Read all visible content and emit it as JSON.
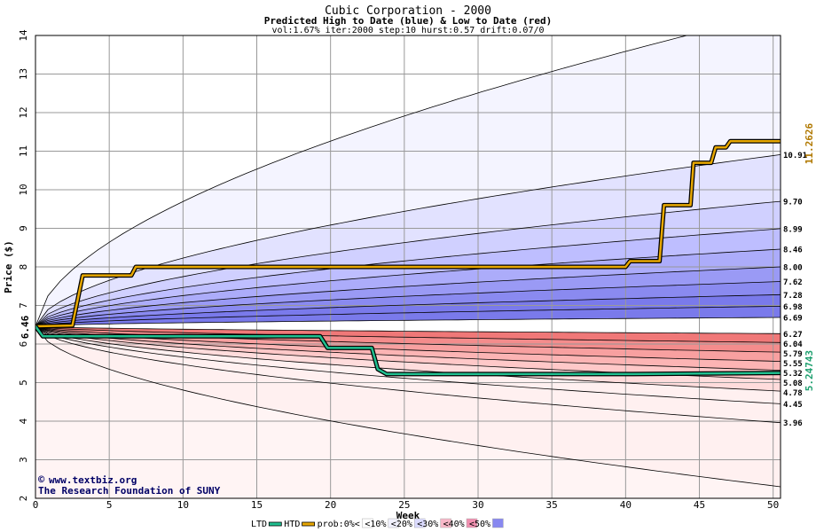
{
  "chart_data": {
    "type": "area",
    "title": "Cubic Corporation - 2000",
    "subtitle": "Predicted High to Date (blue) &  Low to Date (red)",
    "params": "vol:1.67% iter:2000 step:10 hurst:0.57 drift:0.07/0",
    "xlabel": "Week",
    "ylabel": "Price ($)",
    "xlim": [
      0,
      50.5
    ],
    "ylim": [
      2,
      14
    ],
    "x_ticks": [
      0,
      5,
      10,
      15,
      20,
      25,
      30,
      35,
      40,
      45,
      50
    ],
    "y_ticks": [
      2,
      3,
      4,
      5,
      6,
      7,
      8,
      9,
      10,
      11,
      12,
      13,
      14
    ],
    "grid": true,
    "start_price": 6.46,
    "start_label": "6.46",
    "htd_final_label": "11.2626",
    "ltd_final_label": "5.24743",
    "band_end_values": [
      3.96,
      4.45,
      4.78,
      5.08,
      5.32,
      5.55,
      5.79,
      6.04,
      6.27,
      6.69,
      6.98,
      7.28,
      7.62,
      8.0,
      8.46,
      8.99,
      9.7,
      10.91
    ],
    "band_end_labels": [
      "3.96",
      "4.45",
      "4.78",
      "5.08",
      "5.32",
      "5.55",
      "5.79",
      "6.04",
      "6.27",
      "6.69",
      "6.98",
      "7.28",
      "7.62",
      "8.00",
      "8.46",
      "8.99",
      "9.70",
      "10.91"
    ],
    "extreme_bounds": {
      "upper_end": 14.6,
      "lower_end": 2.3
    },
    "series": [
      {
        "name": "HTD",
        "color": "#e8a800",
        "x": [
          0,
          2.5,
          3.2,
          6.5,
          6.8,
          40,
          40.3,
          42.3,
          42.6,
          44.4,
          44.6,
          45.8,
          46.1,
          46.8,
          47.1,
          50.5
        ],
        "y": [
          6.46,
          6.48,
          7.78,
          7.78,
          8.0,
          8.0,
          8.15,
          8.15,
          9.6,
          9.6,
          10.7,
          10.7,
          11.1,
          11.1,
          11.26,
          11.26
        ]
      },
      {
        "name": "LTD",
        "color": "#20c090",
        "x": [
          0,
          0.5,
          19.3,
          19.8,
          22.8,
          23.2,
          23.8,
          40.5,
          50.5
        ],
        "y": [
          6.46,
          6.2,
          6.2,
          5.9,
          5.9,
          5.35,
          5.22,
          5.22,
          5.25
        ]
      }
    ],
    "legend": {
      "position": "bottom",
      "items": [
        {
          "label": "LTD",
          "color": "#20c090",
          "kind": "line"
        },
        {
          "label": "HTD",
          "color": "#e8a800",
          "kind": "line"
        },
        {
          "label": "prob:0%<",
          "color": "#ffffff",
          "kind": "swatch"
        },
        {
          "label": "<10%",
          "color": "#f2f2ff",
          "kind": "swatch"
        },
        {
          "label": "<20%",
          "color": "#dcdcff",
          "kind": "swatch"
        },
        {
          "label": "<30%",
          "color": "#f8b8c8",
          "kind": "swatch"
        },
        {
          "label": "<40%",
          "color": "#f090b0",
          "kind": "swatch"
        },
        {
          "label": "<50%",
          "color": "#8888f0",
          "kind": "swatch"
        }
      ]
    },
    "colors": {
      "upper_bands": [
        "#f4f4ff",
        "#e2e2ff",
        "#d0d0ff",
        "#bebeff",
        "#acacfa",
        "#9a9af5",
        "#8a8af0",
        "#7a7aeb"
      ],
      "lower_bands": [
        "#fff0f0",
        "#ffdcdc",
        "#ffc8c8",
        "#fcb4b4",
        "#f8a0a0",
        "#f48c8c",
        "#f07878"
      ],
      "near_band": "#ffffff"
    }
  },
  "credit": {
    "line1": "www.textbiz.org",
    "line2": "The Research Foundation of SUNY",
    "copyright_symbol": "©"
  }
}
